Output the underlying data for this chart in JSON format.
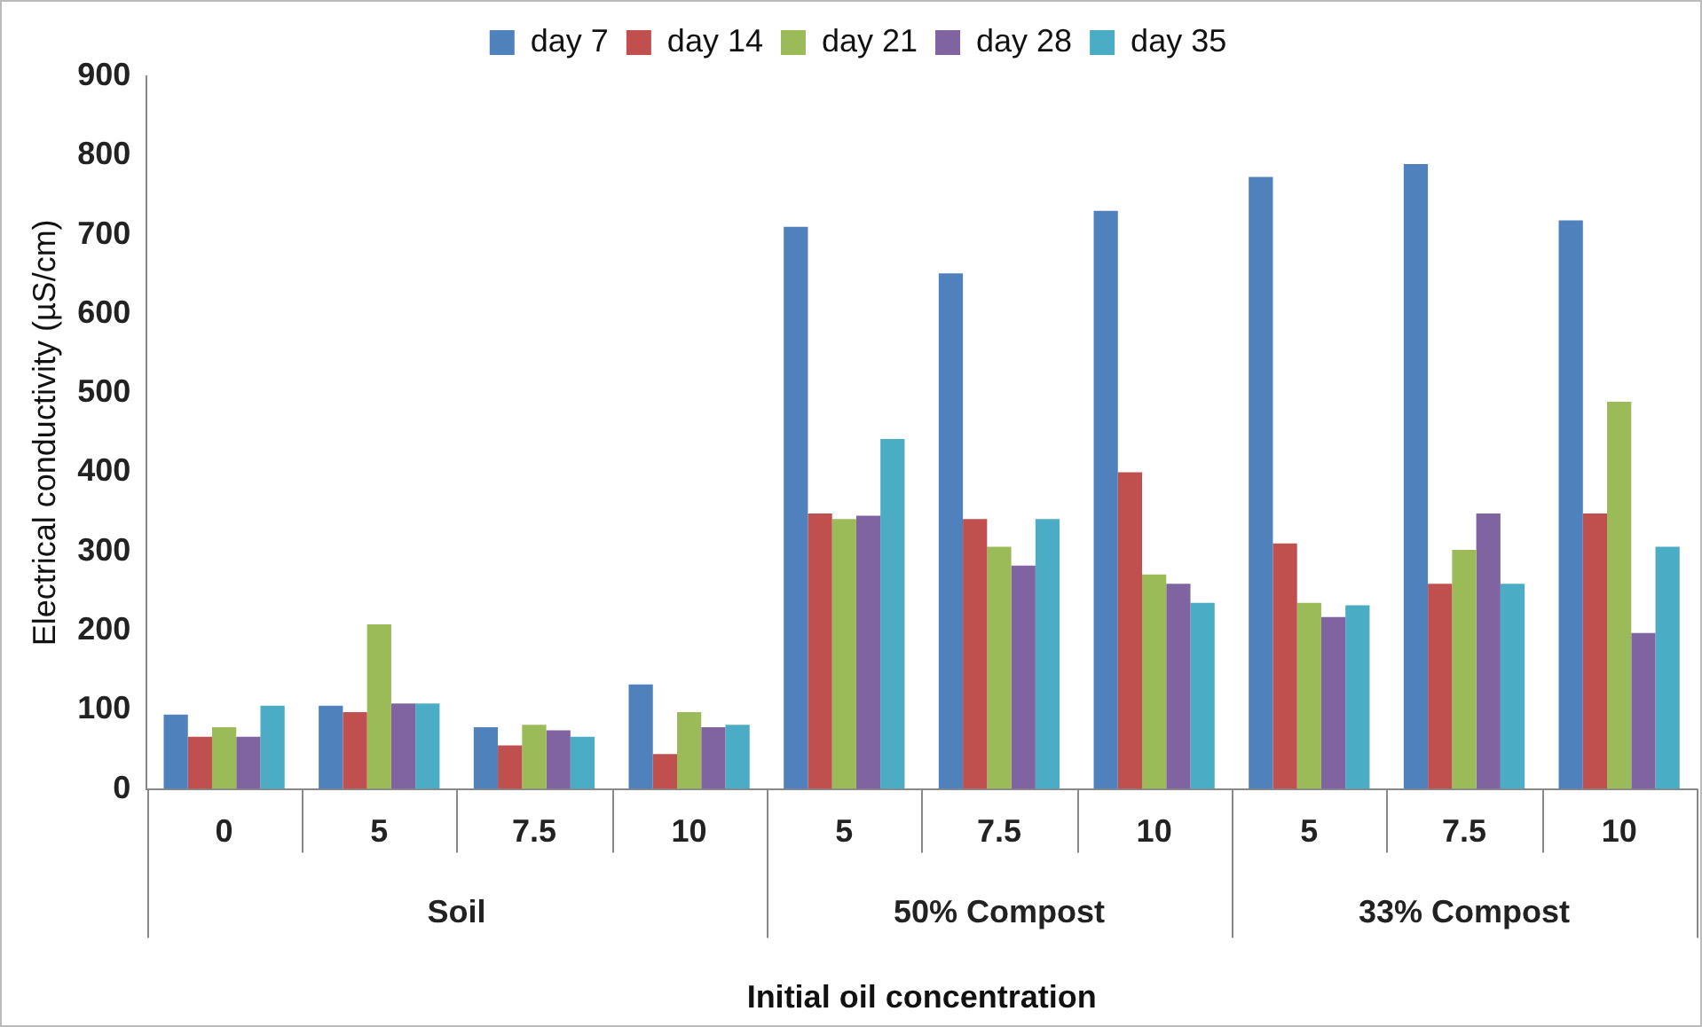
{
  "chart_data": {
    "type": "bar",
    "xlabel": "Initial oil concentration",
    "ylabel": "Electrical conductivity (µS/cm)",
    "categories": [
      "0",
      "5",
      "7.5",
      "10",
      "5",
      "7.5",
      "10",
      "5",
      "7.5",
      "10"
    ],
    "annotations": [
      "Soil",
      "50% Compost",
      "33% Compost"
    ],
    "series": [
      {
        "name": "day 7",
        "color": "#4f81bd",
        "values": [
          94,
          105,
          78,
          132,
          710,
          651,
          730,
          773,
          789,
          718
        ]
      },
      {
        "name": "day 14",
        "color": "#c0504d",
        "values": [
          66,
          97,
          55,
          44,
          348,
          341,
          400,
          310,
          259,
          348
        ]
      },
      {
        "name": "day 21",
        "color": "#9bbb59",
        "values": [
          78,
          208,
          81,
          97,
          341,
          306,
          271,
          235,
          302,
          489
        ]
      },
      {
        "name": "day 28",
        "color": "#8064a2",
        "values": [
          66,
          108,
          74,
          78,
          345,
          282,
          259,
          217,
          348,
          197
        ]
      },
      {
        "name": "day 35",
        "color": "#4bacc6",
        "values": [
          105,
          108,
          66,
          81,
          442,
          341,
          235,
          232,
          259,
          306
        ]
      }
    ],
    "ylim": [
      0,
      900
    ],
    "yticks": [
      0,
      100,
      200,
      300,
      400,
      500,
      600,
      700,
      800,
      900
    ],
    "grid": false,
    "legend": "top"
  }
}
